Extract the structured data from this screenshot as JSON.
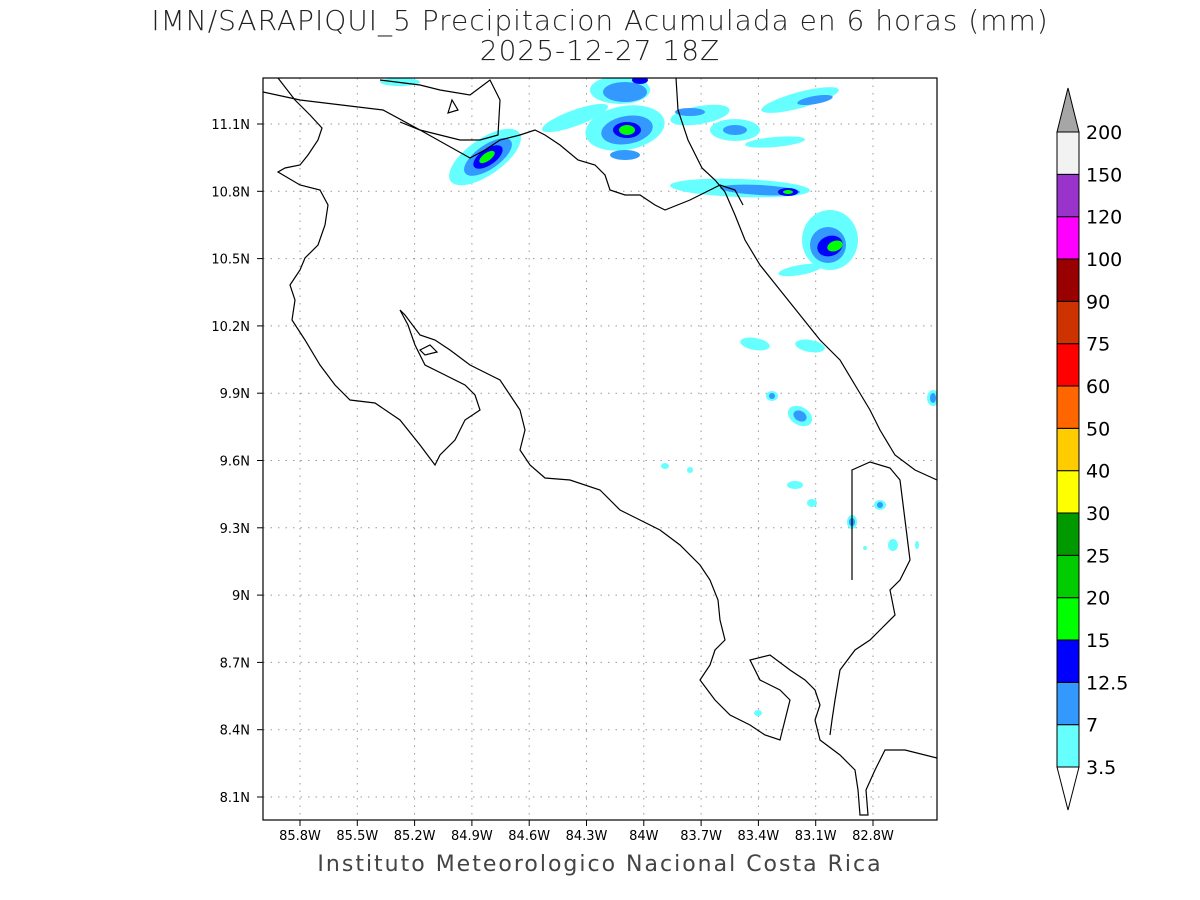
{
  "title": "IMN/SARAPIQUI_5 Precipitacion Acumulada en 6 horas (mm)",
  "subtitle": "2025-12-27 18Z",
  "footer": "Instituto Meteorologico Nacional Costa Rica",
  "map": {
    "lon_labels": [
      "85.8W",
      "85.5W",
      "85.2W",
      "84.9W",
      "84.6W",
      "84.3W",
      "84W",
      "83.7W",
      "83.4W",
      "83.1W",
      "82.8W"
    ],
    "lat_labels": [
      "11.1N",
      "10.8N",
      "10.5N",
      "10.2N",
      "9.9N",
      "9.6N",
      "9.3N",
      "9N",
      "8.7N",
      "8.4N",
      "8.1N"
    ]
  },
  "colorbar": {
    "levels": [
      "3.5",
      "7",
      "12.5",
      "15",
      "20",
      "25",
      "30",
      "40",
      "50",
      "60",
      "75",
      "90",
      "100",
      "120",
      "150",
      "200"
    ],
    "colors": [
      "#66ffff",
      "#3399ff",
      "#0000ff",
      "#00ff00",
      "#00cc00",
      "#009900",
      "#ffff00",
      "#ffcc00",
      "#ff6600",
      "#ff0000",
      "#cc3300",
      "#990000",
      "#ff00ff",
      "#9933cc",
      "#f2f2f2"
    ],
    "over_color": "#a6a6a6"
  }
}
